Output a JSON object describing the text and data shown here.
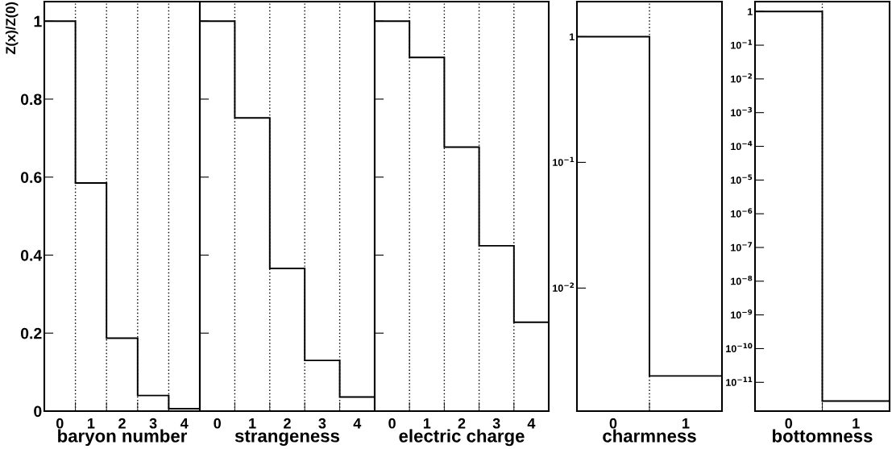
{
  "chart_data": [
    {
      "type": "histogram",
      "xlabel": "baryon number",
      "ylabel": "Z(x)/Z(0)",
      "bins": [
        -0.5,
        0.5,
        1.5,
        2.5,
        3.5,
        4.5
      ],
      "values": [
        1,
        0.585,
        0.187,
        0.04,
        0.006
      ],
      "color": "#000000",
      "xlim": [
        -0.5,
        4.5
      ],
      "xticks": [
        0,
        1,
        2,
        3,
        4,
        {
          "value": 0.5,
          "label": null
        },
        {
          "value": 1.5,
          "label": null
        },
        {
          "value": 2.5,
          "label": null
        },
        {
          "value": 3.5,
          "label": null
        }
      ],
      "ylim": [
        0,
        1.05
      ],
      "yticks": [
        0,
        0.2,
        0.4,
        0.6,
        0.8,
        1
      ],
      "grid": "x"
    },
    {
      "type": "histogram",
      "xlabel": "strangeness",
      "bins": [
        -0.5,
        0.5,
        1.5,
        2.5,
        3.5,
        4.5
      ],
      "values": [
        1,
        0.752,
        0.366,
        0.13,
        0.036
      ],
      "color": "#000000",
      "xlim": [
        -0.5,
        4.5
      ],
      "xticks": [
        0,
        1,
        2,
        3,
        4,
        {
          "value": 0.5,
          "label": null
        },
        {
          "value": 1.5,
          "label": null
        },
        {
          "value": 2.5,
          "label": null
        },
        {
          "value": 3.5,
          "label": null
        }
      ],
      "ylim": [
        0,
        1.05
      ],
      "yticks": [
        0,
        0.2,
        0.4,
        0.6,
        0.8,
        1
      ],
      "grid": "x",
      "tick_labels": "x"
    },
    {
      "type": "histogram",
      "xlabel": "electric charge",
      "bins": [
        -0.5,
        0.5,
        1.5,
        2.5,
        3.5,
        4.5
      ],
      "values": [
        1,
        0.907,
        0.677,
        0.424,
        0.228
      ],
      "color": "#000000",
      "xlim": [
        -0.5,
        4.5
      ],
      "xticks": [
        0,
        1,
        2,
        3,
        4,
        {
          "value": 0.5,
          "label": null
        },
        {
          "value": 1.5,
          "label": null
        },
        {
          "value": 2.5,
          "label": null
        },
        {
          "value": 3.5,
          "label": null
        }
      ],
      "ylim": [
        0,
        1.05
      ],
      "yticks": [
        0,
        0.2,
        0.4,
        0.6,
        0.8,
        1
      ],
      "grid": "x",
      "tick_labels": "x"
    },
    {
      "type": "histogram",
      "xlabel": "charmness",
      "bins": [
        -0.5,
        0.5,
        1.5
      ],
      "values": [
        1,
        0.002
      ],
      "color": "#000000",
      "log": true,
      "xlim": [
        -0.5,
        1.5
      ],
      "xticks": [
        0,
        1,
        {
          "value": 0.5,
          "label": null
        }
      ],
      "ylim": [
        0.00105,
        1.9
      ],
      "yticks": [
        {
          "value": 0.01,
          "label": "10$^{−2}$"
        },
        {
          "value": 0.1,
          "label": "10$^{−1}$"
        },
        1
      ],
      "grid": "x"
    },
    {
      "type": "histogram",
      "xlabel": "bottomness",
      "bins": [
        -0.5,
        0.5,
        1.5
      ],
      "values": [
        1,
        2.8e-12
      ],
      "color": "#000000",
      "log": true,
      "xlim": [
        -0.5,
        1.5
      ],
      "xticks": [
        0,
        1,
        {
          "value": 0.5,
          "label": null
        }
      ],
      "ylim": [
        1.4e-12,
        1.96
      ],
      "yticks": [
        {
          "value": 1e-11,
          "label": "10$^{−11}$"
        },
        {
          "value": 1e-10,
          "label": "10$^{−10}$"
        },
        {
          "value": 1e-09,
          "label": "10$^{−9}$"
        },
        {
          "value": 1e-08,
          "label": "10$^{−8}$"
        },
        {
          "value": 1e-07,
          "label": "10$^{−7}$"
        },
        {
          "value": 1e-06,
          "label": "10$^{−6}$"
        },
        {
          "value": 1e-05,
          "label": "10$^{−5}$"
        },
        {
          "value": 0.0001,
          "label": "10$^{−4}$"
        },
        {
          "value": 0.001,
          "label": "10$^{−3}$"
        },
        {
          "value": 0.01,
          "label": "10$^{−2}$"
        },
        {
          "value": 0.1,
          "label": "10$^{−1}$"
        },
        1
      ],
      "grid": "x"
    }
  ]
}
